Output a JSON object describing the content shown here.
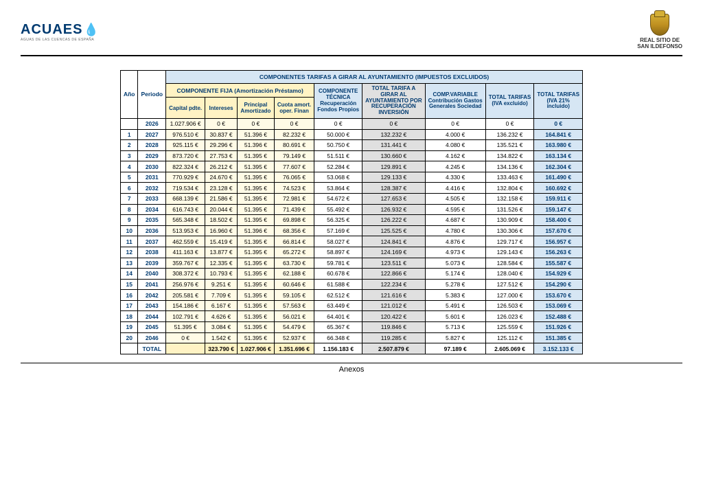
{
  "header": {
    "left_brand": "ACUAES",
    "right_line1": "REAL SITIO DE",
    "right_line2": "SAN ILDEFONSO"
  },
  "table": {
    "super_header": "COMPONENTES TARIFAS A GIRAR AL AYUNTAMIENTO (IMPUESTOS EXCLUIDOS)",
    "col_ano": "Año",
    "col_periodo": "Periodo",
    "group_fija": "COMPONENTE FIJA (Amortización Préstamo)",
    "fija_cols": [
      "Capital pdte.",
      "Intereses",
      "Principal Amortizado",
      "Cuota amort. oper. Finan"
    ],
    "col_tecnica": "COMPONENTE TÉCNICA Recuperación Fondos Propios",
    "col_total_girar": "TOTAL TARIFA A GIRAR AL AYUNTAMIENTO POR RECUPERACIÓN INVERSIÓN",
    "col_variable": "COMP.VARIABLE Contribución Gastos Generales Sociedad",
    "col_total_sin": "TOTAL TARIFAS (IVA excluido)",
    "col_total_con": "TOTAL TARIFAS (IVA 21% incluido)",
    "first_row": [
      "",
      "2026",
      "1.027.906 €",
      "0 €",
      "0 €",
      "0 €",
      "0 €",
      "0 €",
      "0 €",
      "0 €",
      "0 €"
    ],
    "rows": [
      [
        "1",
        "2027",
        "976.510 €",
        "30.837 €",
        "51.396 €",
        "82.232 €",
        "50.000 €",
        "132.232 €",
        "4.000 €",
        "136.232 €",
        "164.841 €"
      ],
      [
        "2",
        "2028",
        "925.115 €",
        "29.296 €",
        "51.396 €",
        "80.691 €",
        "50.750 €",
        "131.441 €",
        "4.080 €",
        "135.521 €",
        "163.980 €"
      ],
      [
        "3",
        "2029",
        "873.720 €",
        "27.753 €",
        "51.395 €",
        "79.149 €",
        "51.511 €",
        "130.660 €",
        "4.162 €",
        "134.822 €",
        "163.134 €"
      ],
      [
        "4",
        "2030",
        "822.324 €",
        "26.212 €",
        "51.395 €",
        "77.607 €",
        "52.284 €",
        "129.891 €",
        "4.245 €",
        "134.136 €",
        "162.304 €"
      ],
      [
        "5",
        "2031",
        "770.929 €",
        "24.670 €",
        "51.395 €",
        "76.065 €",
        "53.068 €",
        "129.133 €",
        "4.330 €",
        "133.463 €",
        "161.490 €"
      ],
      [
        "6",
        "2032",
        "719.534 €",
        "23.128 €",
        "51.395 €",
        "74.523 €",
        "53.864 €",
        "128.387 €",
        "4.416 €",
        "132.804 €",
        "160.692 €"
      ],
      [
        "7",
        "2033",
        "668.139 €",
        "21.586 €",
        "51.395 €",
        "72.981 €",
        "54.672 €",
        "127.653 €",
        "4.505 €",
        "132.158 €",
        "159.911 €"
      ],
      [
        "8",
        "2034",
        "616.743 €",
        "20.044 €",
        "51.395 €",
        "71.439 €",
        "55.492 €",
        "126.932 €",
        "4.595 €",
        "131.526 €",
        "159.147 €"
      ],
      [
        "9",
        "2035",
        "565.348 €",
        "18.502 €",
        "51.395 €",
        "69.898 €",
        "56.325 €",
        "126.222 €",
        "4.687 €",
        "130.909 €",
        "158.400 €"
      ],
      [
        "10",
        "2036",
        "513.953 €",
        "16.960 €",
        "51.396 €",
        "68.356 €",
        "57.169 €",
        "125.525 €",
        "4.780 €",
        "130.306 €",
        "157.670 €"
      ],
      [
        "11",
        "2037",
        "462.559 €",
        "15.419 €",
        "51.395 €",
        "66.814 €",
        "58.027 €",
        "124.841 €",
        "4.876 €",
        "129.717 €",
        "156.957 €"
      ],
      [
        "12",
        "2038",
        "411.163 €",
        "13.877 €",
        "51.395 €",
        "65.272 €",
        "58.897 €",
        "124.169 €",
        "4.973 €",
        "129.143 €",
        "156.263 €"
      ],
      [
        "13",
        "2039",
        "359.767 €",
        "12.335 €",
        "51.395 €",
        "63.730 €",
        "59.781 €",
        "123.511 €",
        "5.073 €",
        "128.584 €",
        "155.587 €"
      ],
      [
        "14",
        "2040",
        "308.372 €",
        "10.793 €",
        "51.395 €",
        "62.188 €",
        "60.678 €",
        "122.866 €",
        "5.174 €",
        "128.040 €",
        "154.929 €"
      ],
      [
        "15",
        "2041",
        "256.976 €",
        "9.251 €",
        "51.395 €",
        "60.646 €",
        "61.588 €",
        "122.234 €",
        "5.278 €",
        "127.512 €",
        "154.290 €"
      ],
      [
        "16",
        "2042",
        "205.581 €",
        "7.709 €",
        "51.395 €",
        "59.105 €",
        "62.512 €",
        "121.616 €",
        "5.383 €",
        "127.000 €",
        "153.670 €"
      ],
      [
        "17",
        "2043",
        "154.186 €",
        "6.167 €",
        "51.395 €",
        "57.563 €",
        "63.449 €",
        "121.012 €",
        "5.491 €",
        "126.503 €",
        "153.069 €"
      ],
      [
        "18",
        "2044",
        "102.791 €",
        "4.626 €",
        "51.395 €",
        "56.021 €",
        "64.401 €",
        "120.422 €",
        "5.601 €",
        "126.023 €",
        "152.488 €"
      ],
      [
        "19",
        "2045",
        "51.395 €",
        "3.084 €",
        "51.395 €",
        "54.479 €",
        "65.367 €",
        "119.846 €",
        "5.713 €",
        "125.559 €",
        "151.926 €"
      ],
      [
        "20",
        "2046",
        "0 €",
        "1.542 €",
        "51.395 €",
        "52.937 €",
        "66.348 €",
        "119.285 €",
        "5.827 €",
        "125.112 €",
        "151.385 €"
      ]
    ],
    "total_row": [
      "",
      "TOTAL",
      "",
      "323.790 €",
      "1.027.906 €",
      "1.351.696 €",
      "1.156.183 €",
      "2.507.879 €",
      "97.189 €",
      "2.605.069 €",
      "3.152.133 €"
    ]
  },
  "footer": "Anexos",
  "colors": {
    "hdr_blue": "#d6e6f4",
    "hdr_yellow": "#fff3c4",
    "cell_yellow": "#fffbe6",
    "cell_grey": "#e0e0e0",
    "text_blue": "#003a70"
  }
}
